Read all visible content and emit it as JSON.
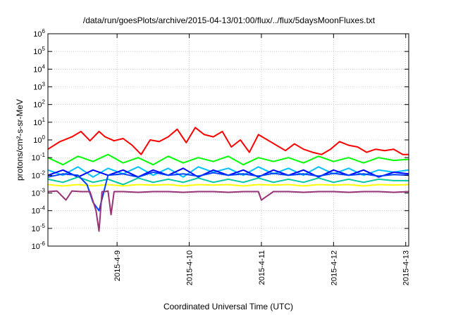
{
  "chart_data": {
    "type": "line",
    "title": "/data/run/goesPlots/archive/2015-04-13/01:00/flux/../flux/5daysMoonFluxes.txt",
    "xlabel": "Coordinated Universal Time (UTC)",
    "ylabel": "protons/cm²-s-sr-MeV",
    "y_scale": "log",
    "ylim": [
      "1e-6",
      "1e6"
    ],
    "y_ticks": [
      {
        "base": "10",
        "exp": "-6"
      },
      {
        "base": "10",
        "exp": "-5"
      },
      {
        "base": "10",
        "exp": "-4"
      },
      {
        "base": "10",
        "exp": "-3"
      },
      {
        "base": "10",
        "exp": "-2"
      },
      {
        "base": "10",
        "exp": "-1"
      },
      {
        "base": "10",
        "exp": "0"
      },
      {
        "base": "10",
        "exp": "1"
      },
      {
        "base": "10",
        "exp": "2"
      },
      {
        "base": "10",
        "exp": "3"
      },
      {
        "base": "10",
        "exp": "4"
      },
      {
        "base": "10",
        "exp": "5"
      },
      {
        "base": "10",
        "exp": "6"
      }
    ],
    "x_ticks": [
      "2015-4-9",
      "2015-4-10",
      "2015-4-11",
      "2015-4-12",
      "2015-4-13"
    ],
    "xlim": [
      "2015-04-08 01:00",
      "2015-04-13 01:00"
    ],
    "grid": true,
    "series": [
      {
        "color": "#ff0000",
        "x": [
          "2015-04-08 01:00",
          "2015-04-08 05:00",
          "2015-04-08 09:00",
          "2015-04-08 12:00",
          "2015-04-08 15:00",
          "2015-04-08 18:00",
          "2015-04-08 20:00",
          "2015-04-08 23:00",
          "2015-04-09 02:00",
          "2015-04-09 05:00",
          "2015-04-09 08:00",
          "2015-04-09 11:00",
          "2015-04-09 14:00",
          "2015-04-09 17:00",
          "2015-04-09 20:00",
          "2015-04-09 23:00",
          "2015-04-10 02:00",
          "2015-04-10 05:00",
          "2015-04-10 08:00",
          "2015-04-10 11:00",
          "2015-04-10 14:00",
          "2015-04-10 17:00",
          "2015-04-10 20:00",
          "2015-04-10 23:00",
          "2015-04-11 02:00",
          "2015-04-11 05:00",
          "2015-04-11 08:00",
          "2015-04-11 11:00",
          "2015-04-11 14:00",
          "2015-04-11 17:00",
          "2015-04-11 20:00",
          "2015-04-11 23:00",
          "2015-04-12 02:00",
          "2015-04-12 05:00",
          "2015-04-12 08:00",
          "2015-04-12 11:00",
          "2015-04-12 14:00",
          "2015-04-12 17:00",
          "2015-04-12 20:00",
          "2015-04-12 23:00",
          "2015-04-13 01:00"
        ],
        "y": [
          0.3,
          0.8,
          1.5,
          3,
          0.9,
          3,
          1.5,
          0.9,
          1.2,
          0.5,
          0.15,
          1,
          0.8,
          1.5,
          4,
          0.7,
          5,
          2,
          1.5,
          3,
          0.4,
          1,
          0.2,
          2,
          1,
          0.5,
          0.25,
          0.6,
          0.3,
          0.2,
          0.15,
          0.3,
          0.8,
          0.5,
          0.4,
          0.2,
          0.3,
          0.25,
          0.3,
          0.15,
          0.15
        ]
      },
      {
        "color": "#00ff00",
        "x": [
          "2015-04-08 01:00",
          "2015-04-08 06:00",
          "2015-04-08 11:00",
          "2015-04-08 16:00",
          "2015-04-08 21:00",
          "2015-04-09 02:00",
          "2015-04-09 07:00",
          "2015-04-09 12:00",
          "2015-04-09 17:00",
          "2015-04-09 22:00",
          "2015-04-10 03:00",
          "2015-04-10 08:00",
          "2015-04-10 13:00",
          "2015-04-10 18:00",
          "2015-04-10 23:00",
          "2015-04-11 04:00",
          "2015-04-11 09:00",
          "2015-04-11 14:00",
          "2015-04-11 19:00",
          "2015-04-12 00:00",
          "2015-04-12 05:00",
          "2015-04-12 10:00",
          "2015-04-12 15:00",
          "2015-04-12 20:00",
          "2015-04-13 01:00"
        ],
        "y": [
          0.1,
          0.04,
          0.12,
          0.06,
          0.15,
          0.05,
          0.1,
          0.04,
          0.12,
          0.05,
          0.1,
          0.06,
          0.12,
          0.04,
          0.1,
          0.06,
          0.1,
          0.05,
          0.12,
          0.06,
          0.1,
          0.05,
          0.1,
          0.07,
          0.08
        ]
      },
      {
        "color": "#00bfff",
        "x": [
          "2015-04-08 01:00",
          "2015-04-08 06:00",
          "2015-04-08 11:00",
          "2015-04-08 16:00",
          "2015-04-08 21:00",
          "2015-04-09 02:00",
          "2015-04-09 07:00",
          "2015-04-09 12:00",
          "2015-04-09 17:00",
          "2015-04-09 22:00",
          "2015-04-10 03:00",
          "2015-04-10 08:00",
          "2015-04-10 13:00",
          "2015-04-10 18:00",
          "2015-04-10 23:00",
          "2015-04-11 04:00",
          "2015-04-11 09:00",
          "2015-04-11 14:00",
          "2015-04-11 19:00",
          "2015-04-12 00:00",
          "2015-04-12 05:00",
          "2015-04-12 10:00",
          "2015-04-12 15:00",
          "2015-04-12 20:00",
          "2015-04-13 01:00"
        ],
        "y": [
          0.02,
          0.01,
          0.03,
          0.008,
          0.025,
          0.012,
          0.03,
          0.01,
          0.025,
          0.008,
          0.03,
          0.015,
          0.025,
          0.01,
          0.03,
          0.012,
          0.025,
          0.01,
          0.03,
          0.012,
          0.025,
          0.01,
          0.02,
          0.015,
          0.02
        ]
      },
      {
        "color": "#0000ff",
        "x": [
          "2015-04-08 01:00",
          "2015-04-08 06:00",
          "2015-04-08 11:00",
          "2015-04-08 16:00",
          "2015-04-08 21:00",
          "2015-04-09 02:00",
          "2015-04-09 07:00",
          "2015-04-09 12:00",
          "2015-04-09 17:00",
          "2015-04-09 22:00",
          "2015-04-10 03:00",
          "2015-04-10 08:00",
          "2015-04-10 13:00",
          "2015-04-10 18:00",
          "2015-04-10 23:00",
          "2015-04-11 04:00",
          "2015-04-11 09:00",
          "2015-04-11 14:00",
          "2015-04-11 19:00",
          "2015-04-12 00:00",
          "2015-04-12 05:00",
          "2015-04-12 10:00",
          "2015-04-12 15:00",
          "2015-04-12 20:00",
          "2015-04-13 01:00"
        ],
        "y": [
          0.01,
          0.02,
          0.008,
          0.02,
          0.01,
          0.02,
          0.008,
          0.02,
          0.01,
          0.025,
          0.008,
          0.02,
          0.01,
          0.02,
          0.008,
          0.02,
          0.01,
          0.02,
          0.008,
          0.02,
          0.01,
          0.02,
          0.008,
          0.015,
          0.012
        ]
      },
      {
        "color": "#00c8a0",
        "x": [
          "2015-04-08 01:00",
          "2015-04-08 06:00",
          "2015-04-08 11:00",
          "2015-04-08 16:00",
          "2015-04-08 21:00",
          "2015-04-09 02:00",
          "2015-04-09 07:00",
          "2015-04-09 12:00",
          "2015-04-09 17:00",
          "2015-04-09 22:00",
          "2015-04-10 03:00",
          "2015-04-10 08:00",
          "2015-04-10 13:00",
          "2015-04-10 18:00",
          "2015-04-10 23:00",
          "2015-04-11 04:00",
          "2015-04-11 09:00",
          "2015-04-11 14:00",
          "2015-04-11 19:00",
          "2015-04-12 00:00",
          "2015-04-12 05:00",
          "2015-04-12 10:00",
          "2015-04-12 15:00",
          "2015-04-12 20:00",
          "2015-04-13 01:00"
        ],
        "y": [
          0.006,
          0.004,
          0.008,
          0.004,
          0.006,
          0.003,
          0.007,
          0.004,
          0.006,
          0.004,
          0.007,
          0.004,
          0.006,
          0.004,
          0.007,
          0.004,
          0.006,
          0.004,
          0.007,
          0.004,
          0.006,
          0.004,
          0.006,
          0.005,
          0.005
        ]
      },
      {
        "color": "#ffff00",
        "x": [
          "2015-04-08 01:00",
          "2015-04-08 06:00",
          "2015-04-08 11:00",
          "2015-04-08 16:00",
          "2015-04-08 21:00",
          "2015-04-09 02:00",
          "2015-04-09 07:00",
          "2015-04-09 12:00",
          "2015-04-09 17:00",
          "2015-04-09 22:00",
          "2015-04-10 03:00",
          "2015-04-10 08:00",
          "2015-04-10 13:00",
          "2015-04-10 18:00",
          "2015-04-10 23:00",
          "2015-04-11 04:00",
          "2015-04-11 09:00",
          "2015-04-11 14:00",
          "2015-04-11 19:00",
          "2015-04-12 00:00",
          "2015-04-12 05:00",
          "2015-04-12 10:00",
          "2015-04-12 15:00",
          "2015-04-12 20:00",
          "2015-04-13 01:00"
        ],
        "y": [
          0.003,
          0.0025,
          0.003,
          0.0025,
          0.003,
          0.0025,
          0.003,
          0.0028,
          0.003,
          0.0025,
          0.003,
          0.0028,
          0.003,
          0.0025,
          0.003,
          0.0028,
          0.003,
          0.0025,
          0.003,
          0.0028,
          0.003,
          0.0025,
          0.003,
          0.0028,
          0.003
        ]
      },
      {
        "color": "#0040ff",
        "x": [
          "2015-04-08 01:00",
          "2015-04-08 06:00",
          "2015-04-08 11:00",
          "2015-04-08 14:00",
          "2015-04-08 16:00",
          "2015-04-08 18:00",
          "2015-04-08 21:00",
          "2015-04-09 02:00",
          "2015-04-09 07:00",
          "2015-04-09 12:00",
          "2015-04-09 17:00",
          "2015-04-09 22:00",
          "2015-04-10 03:00",
          "2015-04-10 08:00",
          "2015-04-10 13:00",
          "2015-04-10 18:00",
          "2015-04-10 23:00",
          "2015-04-11 04:00",
          "2015-04-11 09:00",
          "2015-04-11 14:00",
          "2015-04-11 19:00",
          "2015-04-12 00:00",
          "2015-04-12 05:00",
          "2015-04-12 10:00",
          "2015-04-12 15:00",
          "2015-04-12 20:00",
          "2015-04-13 01:00"
        ],
        "y": [
          0.008,
          0.012,
          0.01,
          0.003,
          0.0003,
          0.0001,
          0.01,
          0.012,
          0.008,
          0.015,
          0.01,
          0.012,
          0.009,
          0.014,
          0.01,
          0.012,
          0.009,
          0.013,
          0.01,
          0.012,
          0.009,
          0.013,
          0.01,
          0.012,
          0.009,
          0.011,
          0.01
        ]
      },
      {
        "color": "#993377",
        "x": [
          "2015-04-08 01:00",
          "2015-04-08 04:00",
          "2015-04-08 07:00",
          "2015-04-08 09:00",
          "2015-04-08 12:00",
          "2015-04-08 15:00",
          "2015-04-08 17:00",
          "2015-04-08 18:00",
          "2015-04-08 19:00",
          "2015-04-08 20:00",
          "2015-04-08 21:00",
          "2015-04-08 22:00",
          "2015-04-08 23:00",
          "2015-04-09 02:00",
          "2015-04-09 07:00",
          "2015-04-09 12:00",
          "2015-04-09 17:00",
          "2015-04-09 22:00",
          "2015-04-10 03:00",
          "2015-04-10 08:00",
          "2015-04-10 13:00",
          "2015-04-10 18:00",
          "2015-04-10 23:00",
          "2015-04-11 00:00",
          "2015-04-11 04:00",
          "2015-04-11 09:00",
          "2015-04-11 14:00",
          "2015-04-11 19:00",
          "2015-04-12 00:00",
          "2015-04-12 05:00",
          "2015-04-12 10:00",
          "2015-04-12 15:00",
          "2015-04-12 20:00",
          "2015-04-13 01:00"
        ],
        "y": [
          0.0012,
          0.0013,
          0.0004,
          0.0013,
          0.0012,
          0.0012,
          0.0001,
          7e-06,
          0.0012,
          0.0012,
          0.0013,
          6e-05,
          0.0012,
          0.0012,
          0.0011,
          0.0012,
          0.0012,
          0.0011,
          0.0012,
          0.0012,
          0.0011,
          0.0012,
          0.0012,
          0.0004,
          0.0012,
          0.0012,
          0.0011,
          0.0012,
          0.0012,
          0.0011,
          0.0012,
          0.0012,
          0.0011,
          0.0012
        ]
      }
    ]
  }
}
